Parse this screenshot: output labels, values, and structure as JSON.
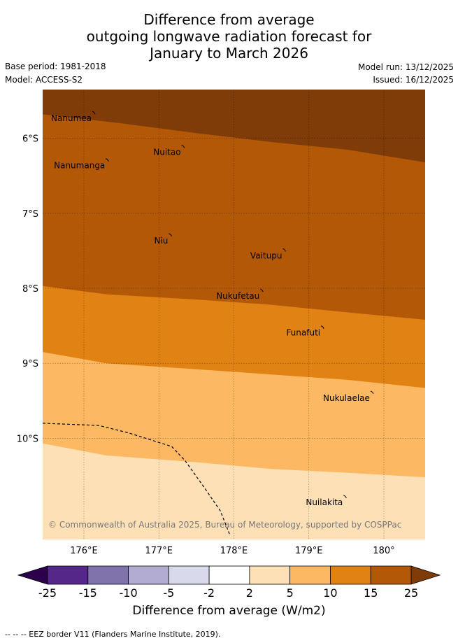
{
  "title": {
    "line1": "Difference from average",
    "line2": "outgoing longwave radiation forecast for",
    "line3": "January to March 2026"
  },
  "meta": {
    "base_period": "Base period: 1981-2018",
    "model": "Model: ACCESS-S2",
    "model_run": "Model run: 13/12/2025",
    "issued": "Issued: 16/12/2025"
  },
  "map": {
    "lon_range": [
      175.45,
      180.55
    ],
    "lat_range": [
      -5.35,
      -11.35
    ],
    "lon_ticks": [
      {
        "value": 176,
        "label": "176°E"
      },
      {
        "value": 177,
        "label": "177°E"
      },
      {
        "value": 178,
        "label": "178°E"
      },
      {
        "value": 179,
        "label": "179°E"
      },
      {
        "value": 180,
        "label": "180°"
      }
    ],
    "lat_ticks": [
      {
        "value": -6,
        "label": "6°S"
      },
      {
        "value": -7,
        "label": "7°S"
      },
      {
        "value": -8,
        "label": "8°S"
      },
      {
        "value": -9,
        "label": "9°S"
      },
      {
        "value": -10,
        "label": "10°S"
      }
    ],
    "places": [
      {
        "name": "Nanumea",
        "lon": 176.14,
        "lat": -5.66
      },
      {
        "name": "Nuitao",
        "lon": 177.33,
        "lat": -6.11
      },
      {
        "name": "Nanumanga",
        "lon": 176.32,
        "lat": -6.29
      },
      {
        "name": "Niu",
        "lon": 177.16,
        "lat": -7.29
      },
      {
        "name": "Vaitupu",
        "lon": 178.68,
        "lat": -7.49
      },
      {
        "name": "Nukufetau",
        "lon": 178.38,
        "lat": -8.03
      },
      {
        "name": "Funafuti",
        "lon": 179.19,
        "lat": -8.52
      },
      {
        "name": "Nukulaelae",
        "lon": 179.85,
        "lat": -9.39
      },
      {
        "name": "Nuilakita",
        "lon": 179.49,
        "lat": -10.78
      }
    ],
    "bands": [
      {
        "range": "> 25",
        "color": "#7f3b08",
        "boundary": [
          [
            175.45,
            -5.68
          ],
          [
            176.5,
            -5.8
          ],
          [
            177.5,
            -5.93
          ],
          [
            178.5,
            -6.05
          ],
          [
            179.5,
            -6.15
          ],
          [
            180.55,
            -6.32
          ]
        ]
      },
      {
        "range": "15 to 25",
        "color": "#b35806",
        "boundary": [
          [
            175.45,
            -7.97
          ],
          [
            176.3,
            -8.08
          ],
          [
            177.5,
            -8.15
          ],
          [
            178.5,
            -8.22
          ],
          [
            179.5,
            -8.32
          ],
          [
            180.55,
            -8.42
          ]
        ]
      },
      {
        "range": "10 to 15",
        "color": "#e08214",
        "boundary": [
          [
            175.45,
            -8.85
          ],
          [
            176.3,
            -9.0
          ],
          [
            177.5,
            -9.08
          ],
          [
            178.5,
            -9.15
          ],
          [
            179.5,
            -9.22
          ],
          [
            180.55,
            -9.33
          ]
        ]
      },
      {
        "range": "5 to 10",
        "color": "#fdb863",
        "boundary": [
          [
            175.45,
            -10.07
          ],
          [
            176.3,
            -10.23
          ],
          [
            177.5,
            -10.32
          ],
          [
            178.5,
            -10.41
          ],
          [
            179.5,
            -10.46
          ],
          [
            180.55,
            -10.52
          ]
        ]
      },
      {
        "range": "2 to 5",
        "color": "#fee0b6",
        "boundary": null
      }
    ],
    "eez_border": [
      [
        175.45,
        -9.8
      ],
      [
        176.2,
        -9.83
      ],
      [
        176.6,
        -9.93
      ],
      [
        177.17,
        -10.11
      ],
      [
        177.35,
        -10.3
      ],
      [
        177.6,
        -10.65
      ],
      [
        177.82,
        -10.97
      ],
      [
        177.95,
        -11.3
      ]
    ],
    "copyright": "© Commonwealth of Australia 2025, Bureau of Meteorology, supported by COSPPac"
  },
  "colorbar": {
    "label": "Difference from average (W/m2)",
    "ticks": [
      "-25",
      "-15",
      "-10",
      "-5",
      "-2",
      "2",
      "5",
      "10",
      "15",
      "25"
    ],
    "colors": [
      "#542788",
      "#8073ac",
      "#b2abd2",
      "#d8daeb",
      "#ffffff",
      "#fee0b6",
      "#fdb863",
      "#e08214",
      "#b35806"
    ],
    "under_color": "#2d004b",
    "over_color": "#7f3b08"
  },
  "footer": {
    "legend": "--  --  -- EEZ border V11 (Flanders Marine Institute, 2019)."
  }
}
